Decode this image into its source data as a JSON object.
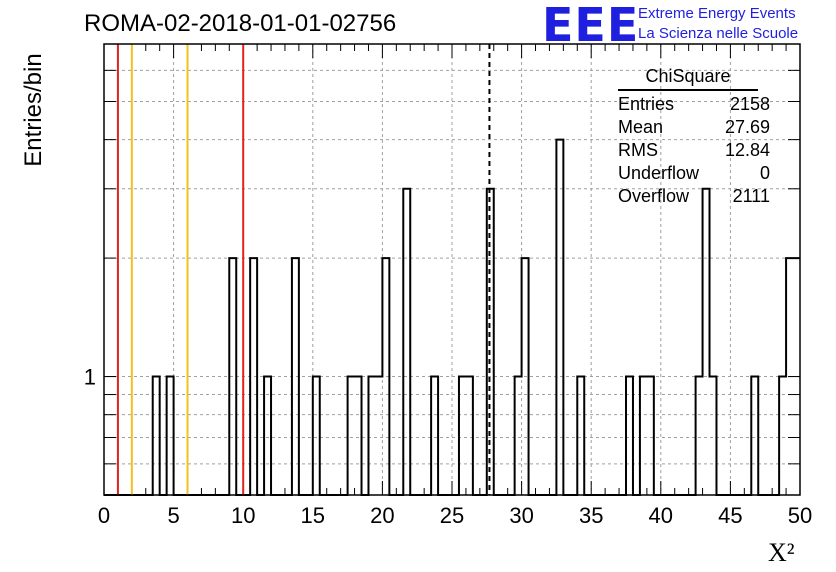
{
  "header": {
    "title": "ROMA-02-2018-01-01-02756",
    "logo_mark": "EEE",
    "logo_line1": "Extreme Energy Events",
    "logo_line2": "La Scienza nelle Scuole"
  },
  "stats_box": {
    "title": "ChiSquare",
    "rows": [
      {
        "label": "Entries",
        "value": "2158"
      },
      {
        "label": "Mean",
        "value": "27.69"
      },
      {
        "label": "RMS",
        "value": "12.84"
      },
      {
        "label": "Underflow",
        "value": "0"
      },
      {
        "label": "Overflow",
        "value": "2111"
      }
    ]
  },
  "colors": {
    "red_line": "#e0231c",
    "yellow_line": "#f2c11a",
    "histogram": "#000000",
    "grid": "#a0a0a0"
  },
  "chart_data": {
    "type": "bar",
    "title": "ROMA-02-2018-01-01-02756",
    "xlabel": "X²",
    "ylabel": "Entries/bin",
    "xlim": [
      0,
      50
    ],
    "ylim": [
      0.5,
      7
    ],
    "log_y": true,
    "grid": true,
    "bin_width": 0.5,
    "bins": [
      {
        "x": 3.5,
        "y": 1
      },
      {
        "x": 4.5,
        "y": 1
      },
      {
        "x": 9.0,
        "y": 2
      },
      {
        "x": 10.5,
        "y": 2
      },
      {
        "x": 11.5,
        "y": 1
      },
      {
        "x": 13.5,
        "y": 2
      },
      {
        "x": 15.0,
        "y": 1
      },
      {
        "x": 17.5,
        "y": 1
      },
      {
        "x": 18.0,
        "y": 1
      },
      {
        "x": 19.0,
        "y": 1
      },
      {
        "x": 19.5,
        "y": 1
      },
      {
        "x": 20.0,
        "y": 2
      },
      {
        "x": 21.5,
        "y": 3
      },
      {
        "x": 23.5,
        "y": 1
      },
      {
        "x": 25.5,
        "y": 1
      },
      {
        "x": 26.0,
        "y": 1
      },
      {
        "x": 27.5,
        "y": 3
      },
      {
        "x": 29.5,
        "y": 1
      },
      {
        "x": 30.0,
        "y": 2
      },
      {
        "x": 32.5,
        "y": 4
      },
      {
        "x": 34.0,
        "y": 1
      },
      {
        "x": 37.5,
        "y": 1
      },
      {
        "x": 38.5,
        "y": 1
      },
      {
        "x": 39.0,
        "y": 1
      },
      {
        "x": 42.5,
        "y": 1
      },
      {
        "x": 43.0,
        "y": 3
      },
      {
        "x": 43.5,
        "y": 1
      },
      {
        "x": 46.5,
        "y": 1
      },
      {
        "x": 48.5,
        "y": 1
      },
      {
        "x": 49.0,
        "y": 2
      },
      {
        "x": 49.5,
        "y": 2
      }
    ],
    "x_ticks": [
      0,
      5,
      10,
      15,
      20,
      25,
      30,
      35,
      40,
      45,
      50
    ],
    "y_tick_labels": [
      {
        "value": 1,
        "label": "1"
      }
    ],
    "vertical_lines": [
      {
        "x": 1,
        "color": "red"
      },
      {
        "x": 2,
        "color": "yellow"
      },
      {
        "x": 6,
        "color": "yellow"
      },
      {
        "x": 10,
        "color": "red"
      },
      {
        "x": 27.69,
        "color": "black",
        "style": "dashed"
      }
    ]
  }
}
